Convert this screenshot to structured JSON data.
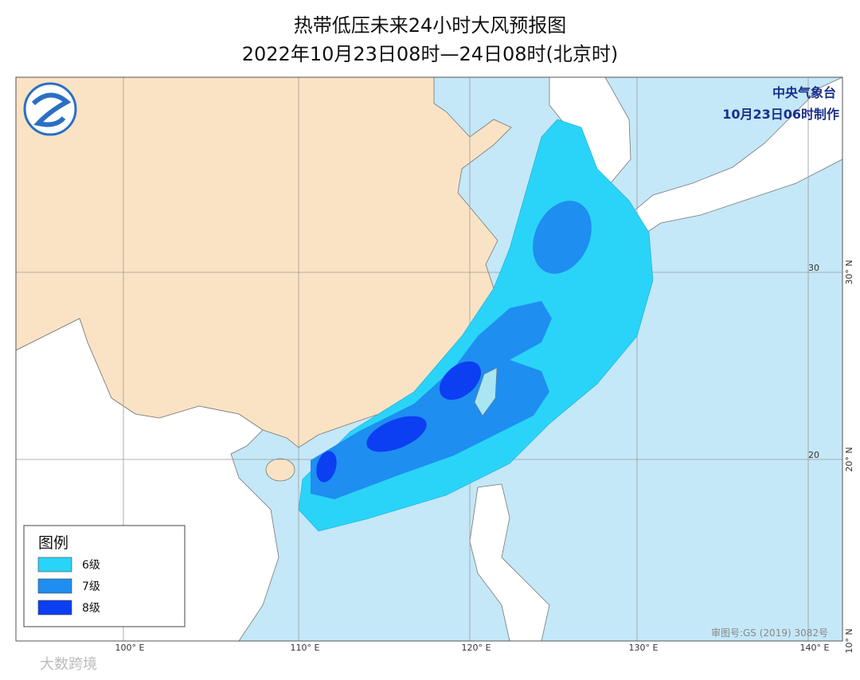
{
  "header": {
    "title": "热带低压未来24小时大风预报图",
    "subtitle": "2022年10月23日08时—24日08时(北京时)"
  },
  "agency": {
    "name": "中央气象台",
    "issued": "10月23日06时制作"
  },
  "legend": {
    "title": "图例",
    "items": [
      {
        "label": "6级",
        "color": "#2ad4f8"
      },
      {
        "label": "7级",
        "color": "#1e8ef0"
      },
      {
        "label": "8级",
        "color": "#0c3ef2"
      }
    ]
  },
  "map": {
    "lon_labels": [
      "100° E",
      "110° E",
      "120° E",
      "130° E",
      "140° E"
    ],
    "lat_labels": [
      "30° N",
      "20° N",
      "10° N"
    ],
    "inner_lat_labels": [
      "30",
      "20"
    ],
    "approval": "审图号:GS (2019) 3082号"
  },
  "watermark": "大数跨境"
}
